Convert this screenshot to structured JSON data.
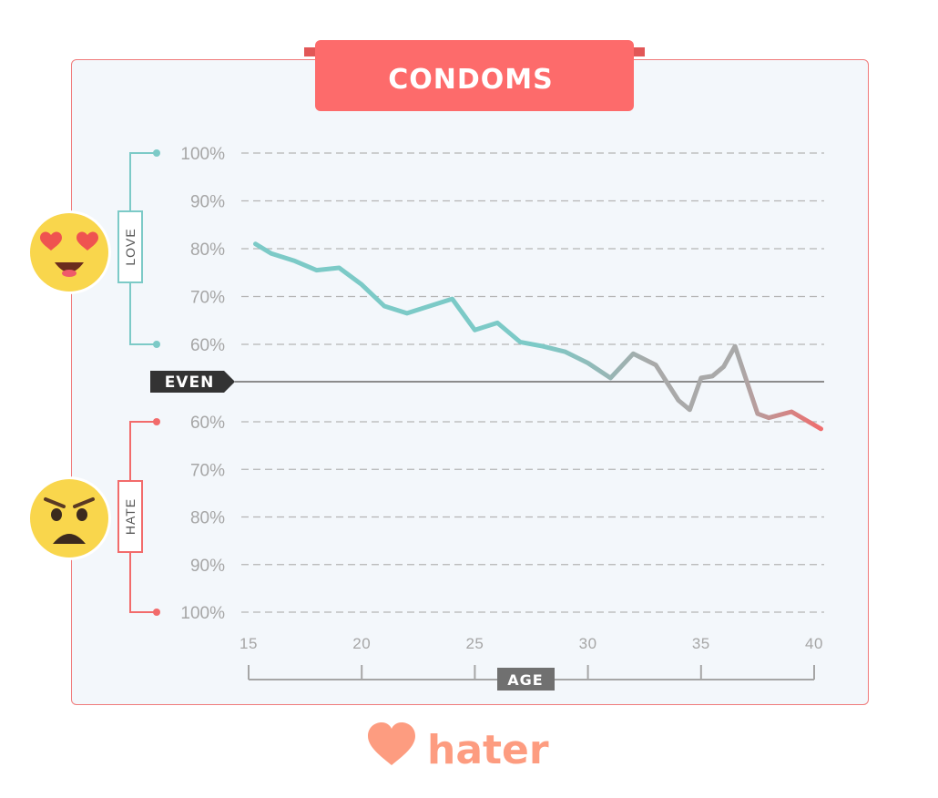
{
  "title": "CONDOMS",
  "brand": {
    "name": "hater",
    "color": "#fd9c80"
  },
  "colors": {
    "love": "#7ccac7",
    "hate": "#f26b6b",
    "neutral": "#a9a9a9",
    "title_bg": "#fd6b6b",
    "badge_bg": "#333333"
  },
  "even_label": "EVEN",
  "love_label": "LOVE",
  "hate_label": "HATE",
  "icons": {
    "love": "heart-eyes-emoji-icon",
    "hate": "angry-face-emoji-icon",
    "brand": "heart-logo-icon"
  },
  "chart_data": {
    "type": "line",
    "title": "CONDOMS",
    "xlabel": "AGE",
    "ylabel": "",
    "x_ticks": [
      15,
      20,
      25,
      30,
      35,
      40
    ],
    "xlim": [
      15,
      40
    ],
    "love_ticks": [
      "100%",
      "90%",
      "80%",
      "70%",
      "60%"
    ],
    "hate_ticks": [
      "60%",
      "70%",
      "80%",
      "90%",
      "100%"
    ],
    "y_scale_note": "signed: positive = love %, negative = hate %",
    "grid": true,
    "series": [
      {
        "x": [
          15.3,
          16,
          17,
          18,
          19,
          20,
          21,
          22,
          23,
          24,
          25,
          26,
          27,
          28,
          29,
          30,
          31,
          32,
          33,
          34,
          34.5,
          35,
          35.5,
          36,
          36.5,
          37.5,
          38,
          39,
          40.3
        ],
        "y": [
          81,
          79,
          77.5,
          75.5,
          76,
          72.5,
          68,
          66.5,
          68,
          69.5,
          63,
          64.5,
          60.5,
          59.5,
          58,
          55,
          51,
          57.5,
          54.5,
          45,
          -57,
          51,
          51.5,
          54,
          59.5,
          -58,
          -59,
          -57.5,
          -61.5
        ]
      }
    ]
  }
}
